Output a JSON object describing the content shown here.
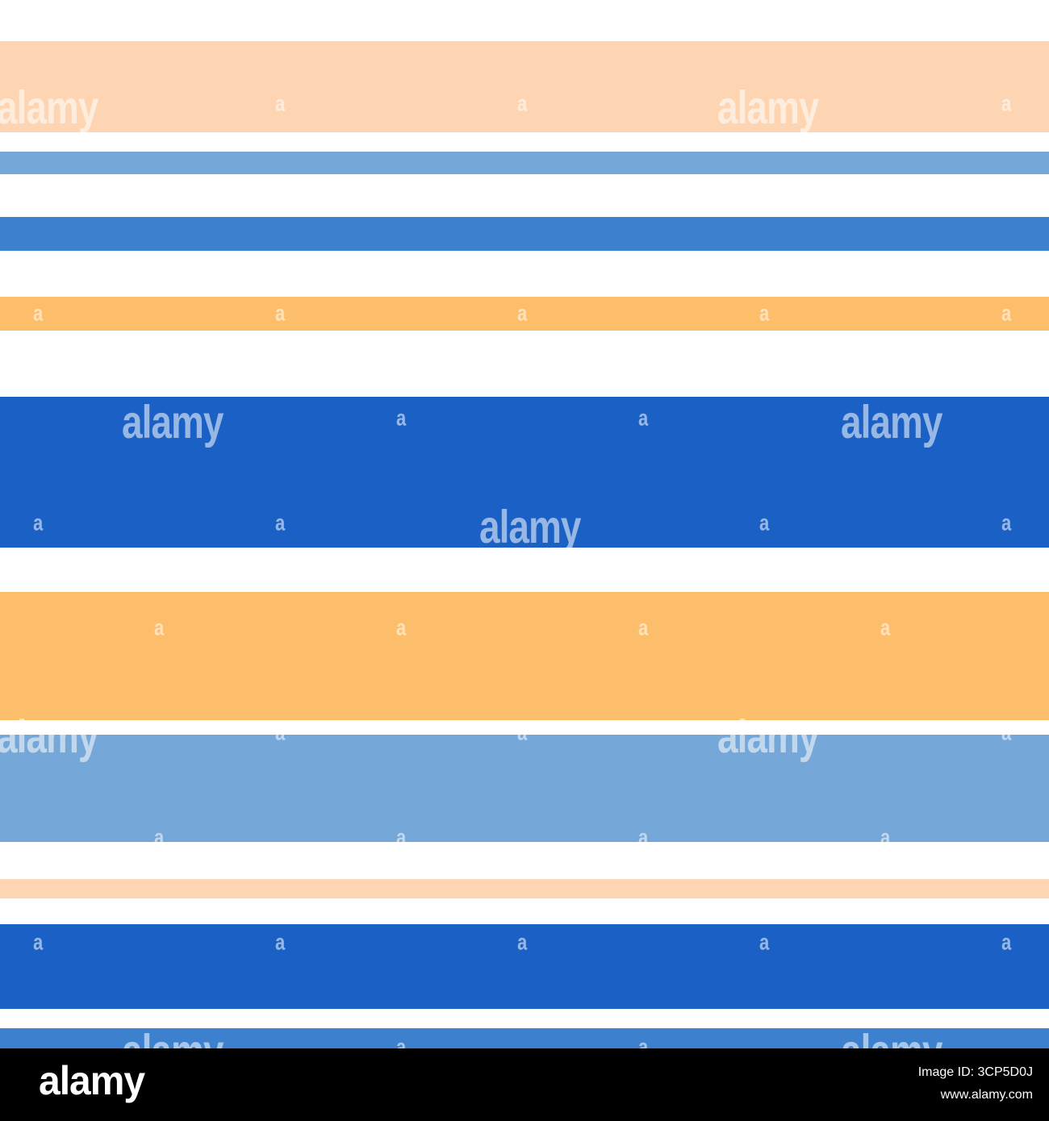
{
  "colors": {
    "background": "#ffffff",
    "peach": "#fdd5b3",
    "light_blue": "#75a7d8",
    "mid_blue": "#3d81ce",
    "royal_blue": "#1a60c5",
    "orange": "#fdbe6b",
    "footer_background": "#000000",
    "footer_text": "#ffffff"
  },
  "stripes": [
    "peach",
    "light_blue",
    "mid_blue",
    "orange",
    "royal_blue",
    "orange",
    "light_blue",
    "peach",
    "royal_blue",
    "mid_blue"
  ],
  "watermark": {
    "word": "alamy",
    "letter": "a"
  },
  "footer": {
    "logo": "alamy",
    "image_id": "Image ID: 3CP5D0J",
    "url": "www.alamy.com"
  }
}
